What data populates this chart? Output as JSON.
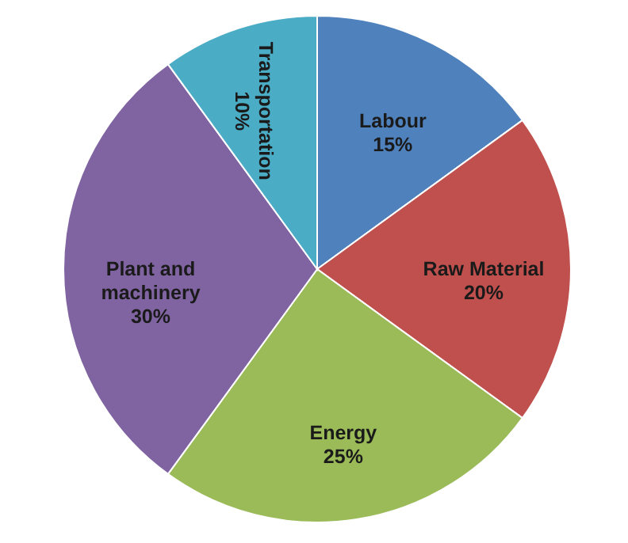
{
  "chart_data": {
    "type": "pie",
    "categories": [
      "Labour",
      "Raw Material",
      "Energy",
      "Plant and machinery",
      "Transportation"
    ],
    "values": [
      15,
      20,
      25,
      30,
      10
    ],
    "colors": [
      "#4f81bd",
      "#c0504d",
      "#9bbb59",
      "#8064a2",
      "#4bacc6"
    ],
    "value_labels": [
      "15%",
      "20%",
      "25%",
      "30%",
      "10%"
    ],
    "legend": false
  }
}
